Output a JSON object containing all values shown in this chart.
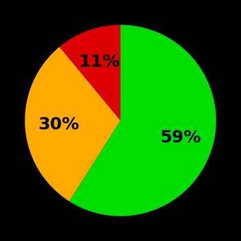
{
  "slices": [
    59,
    30,
    11
  ],
  "colors": [
    "#00dd00",
    "#ffaa00",
    "#dd0000"
  ],
  "labels": [
    "59%",
    "30%",
    "11%"
  ],
  "background_color": "#000000",
  "text_color": "#000000",
  "label_fontsize": 18,
  "label_fontweight": "bold",
  "startangle": 90,
  "counterclock": false
}
